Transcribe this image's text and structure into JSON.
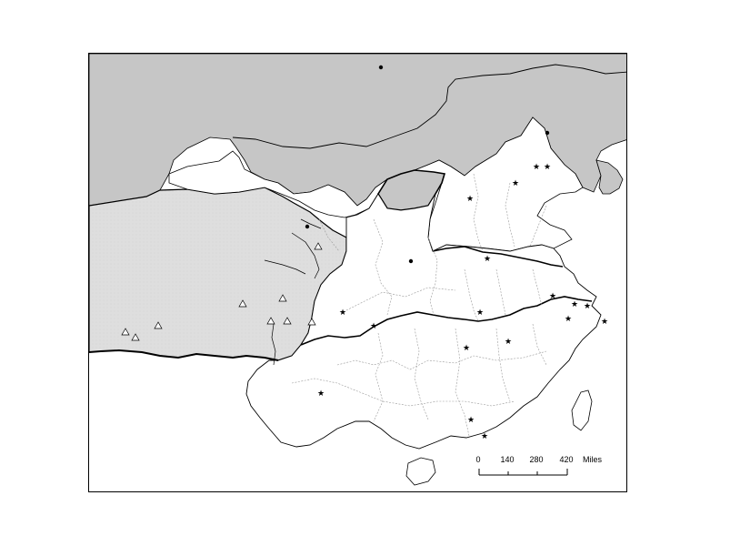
{
  "map": {
    "colors": {
      "foreign_land": "#c6c6c6",
      "western_region": "#dcdcdc",
      "main_land": "#ffffff",
      "sea": "#ffffff",
      "border": "#000000",
      "internal_border": "#9a9a9a"
    },
    "symbols": [
      "star-marker",
      "dot-marker",
      "triangle-marker"
    ],
    "scale_bar": {
      "ticks": [
        "0",
        "140",
        "280",
        "420"
      ],
      "units": "Miles"
    }
  }
}
